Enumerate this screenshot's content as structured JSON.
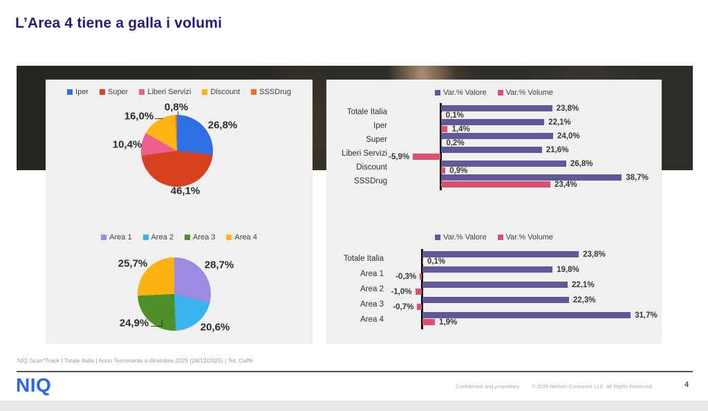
{
  "slide": {
    "title": "L’Area 4 tiene a galla i volumi",
    "source_line": "NIQ Scan*Track | Totale Italia | Anno Terminante a dicembre 2025 (28/12/2025) | Tot. Caffè",
    "logo": "NIQ",
    "footer_confidential": "Confidential and proprietary",
    "footer_copyright": "© 2026 Nielsen Consumer LLC. All Rights Reserved.",
    "page_number": "4"
  },
  "colors": {
    "title": "#221e75",
    "panel_bg": "#f1f0ee",
    "valore_bar": "#615898",
    "volume_bar": "#dd4f72",
    "logo_blue": "#2c63f3"
  },
  "chart_data": [
    {
      "id": "pie-channels",
      "type": "pie",
      "legend_position": "top",
      "categories": [
        "Iper",
        "Super",
        "Liberi Servizi",
        "Discount",
        "SSSDrug"
      ],
      "values": [
        26.8,
        46.1,
        10.4,
        16.0,
        0.8
      ],
      "labels": [
        "26,8%",
        "46,1%",
        "10,4%",
        "16,0%",
        "0,8%"
      ],
      "colors": [
        "#2f6fe4",
        "#d8401f",
        "#ee5e8f",
        "#fcb515",
        "#f0701d"
      ]
    },
    {
      "id": "pie-areas",
      "type": "pie",
      "legend_position": "top",
      "categories": [
        "Area 1",
        "Area 2",
        "Area 3",
        "Area 4"
      ],
      "values": [
        28.7,
        20.6,
        24.9,
        25.7
      ],
      "labels": [
        "28,7%",
        "20,6%",
        "24,9%",
        "25,7%"
      ],
      "colors": [
        "#9e8ae0",
        "#3ab4ec",
        "#4e8f29",
        "#fbb314"
      ]
    },
    {
      "id": "bar-channels",
      "type": "bar",
      "orientation": "horizontal",
      "legend": [
        "Var.% Valore",
        "Var.% Volume"
      ],
      "legend_colors": [
        "#615898",
        "#dd4f72"
      ],
      "categories": [
        "Totale Italia",
        "Iper",
        "Super",
        "Liberi Servizi",
        "Discount",
        "SSSDrug"
      ],
      "series": [
        {
          "name": "Var.% Valore",
          "color": "#615898",
          "values": [
            23.8,
            22.1,
            24.0,
            21.6,
            26.8,
            38.7
          ],
          "labels": [
            "23,8%",
            "22,1%",
            "24,0%",
            "21,6%",
            "26,8%",
            "38,7%"
          ]
        },
        {
          "name": "Var.% Volume",
          "color": "#dd4f72",
          "values": [
            0.1,
            1.4,
            0.2,
            -5.9,
            0.9,
            23.4
          ],
          "labels": [
            "0,1%",
            "1,4%",
            "0,2%",
            "-5,9%",
            "0,9%",
            "23,4%"
          ]
        }
      ]
    },
    {
      "id": "bar-areas",
      "type": "bar",
      "orientation": "horizontal",
      "legend": [
        "Var.% Valore",
        "Var.% Volume"
      ],
      "legend_colors": [
        "#615898",
        "#dd4f72"
      ],
      "categories": [
        "Totale Italia",
        "Area 1",
        "Area 2",
        "Area 3",
        "Area 4"
      ],
      "series": [
        {
          "name": "Var.% Valore",
          "color": "#615898",
          "values": [
            23.8,
            19.8,
            22.1,
            22.3,
            31.7
          ],
          "labels": [
            "23,8%",
            "19,8%",
            "22,1%",
            "22,3%",
            "31,7%"
          ]
        },
        {
          "name": "Var.% Volume",
          "color": "#dd4f72",
          "values": [
            0.1,
            -0.3,
            -1.0,
            -0.7,
            1.9
          ],
          "labels": [
            "0,1%",
            "-0,3%",
            "-1,0%",
            "-0,7%",
            "1,9%"
          ]
        }
      ]
    }
  ]
}
